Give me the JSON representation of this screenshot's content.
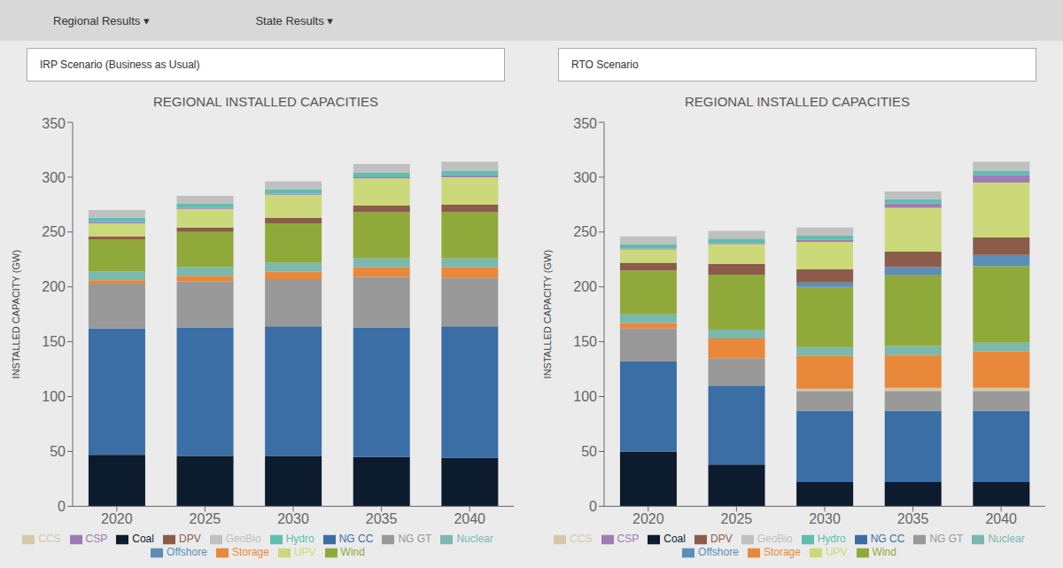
{
  "chart_data": [
    {
      "type": "bar",
      "stacked": true,
      "annotations": [
        "Regional Results ▾",
        "State Results ▾"
      ],
      "subtitle": "IRP Scenario (Business as Usual)",
      "title": "REGIONAL INSTALLED CAPACITIES",
      "ylabel": "INSTALLED CAPACITY (GW)",
      "categories": [
        "2020",
        "2025",
        "2030",
        "2035",
        "2040"
      ],
      "ylim": [
        0,
        350
      ],
      "yticks": [
        0,
        50,
        100,
        150,
        200,
        250,
        300,
        350
      ],
      "grid": false,
      "legend": "bottom",
      "series": [
        {
          "name": "Coal",
          "color": "#0d1b2e",
          "values": [
            47,
            46,
            46,
            45,
            44
          ]
        },
        {
          "name": "NG CC",
          "color": "#3a6ea5",
          "values": [
            115,
            117,
            118,
            118,
            120
          ]
        },
        {
          "name": "NG GT",
          "color": "#999999",
          "values": [
            41,
            42,
            43,
            46,
            44
          ]
        },
        {
          "name": "CCS",
          "color": "#d4c9a8",
          "values": [
            0,
            0,
            0,
            0,
            0
          ]
        },
        {
          "name": "Storage",
          "color": "#e8883a",
          "values": [
            3,
            5,
            7,
            9,
            10
          ]
        },
        {
          "name": "Nuclear",
          "color": "#7ab8b0",
          "values": [
            8,
            8,
            8,
            8,
            8
          ]
        },
        {
          "name": "Wind",
          "color": "#8faa3a",
          "values": [
            29,
            32,
            36,
            42,
            42
          ]
        },
        {
          "name": "Offshore",
          "color": "#5b8db8",
          "values": [
            0,
            0,
            0,
            0,
            0
          ]
        },
        {
          "name": "DPV",
          "color": "#8b5c4a",
          "values": [
            3,
            4,
            5,
            6,
            7
          ]
        },
        {
          "name": "UPV",
          "color": "#ccd97a",
          "values": [
            12,
            17,
            21,
            25,
            25
          ]
        },
        {
          "name": "CSP",
          "color": "#a07ab5",
          "values": [
            1,
            1,
            1,
            1,
            2
          ]
        },
        {
          "name": "Hydro",
          "color": "#5fbeae",
          "values": [
            4,
            4,
            4,
            4,
            4
          ]
        },
        {
          "name": "GeoBio",
          "color": "#c0c0c0",
          "values": [
            7,
            7,
            7,
            8,
            8
          ]
        }
      ]
    },
    {
      "type": "bar",
      "stacked": true,
      "subtitle": "RTO Scenario",
      "title": "REGIONAL INSTALLED CAPACITIES",
      "ylabel": "INSTALLED CAPACITY (GW)",
      "categories": [
        "2020",
        "2025",
        "2030",
        "2035",
        "2040"
      ],
      "ylim": [
        0,
        350
      ],
      "yticks": [
        0,
        50,
        100,
        150,
        200,
        250,
        300,
        350
      ],
      "grid": false,
      "legend": "bottom",
      "series": [
        {
          "name": "Coal",
          "color": "#0d1b2e",
          "values": [
            50,
            38,
            22,
            22,
            22
          ]
        },
        {
          "name": "NG CC",
          "color": "#3a6ea5",
          "values": [
            82,
            72,
            65,
            65,
            65
          ]
        },
        {
          "name": "NG GT",
          "color": "#999999",
          "values": [
            30,
            25,
            18,
            18,
            18
          ]
        },
        {
          "name": "CCS",
          "color": "#d4c9a8",
          "values": [
            0,
            0,
            2,
            3,
            3
          ]
        },
        {
          "name": "Storage",
          "color": "#e8883a",
          "values": [
            5,
            18,
            30,
            30,
            33
          ]
        },
        {
          "name": "Nuclear",
          "color": "#7ab8b0",
          "values": [
            8,
            8,
            8,
            8,
            8
          ]
        },
        {
          "name": "Wind",
          "color": "#8faa3a",
          "values": [
            40,
            50,
            55,
            65,
            70
          ]
        },
        {
          "name": "Offshore",
          "color": "#5b8db8",
          "values": [
            0,
            0,
            4,
            7,
            10
          ]
        },
        {
          "name": "DPV",
          "color": "#8b5c4a",
          "values": [
            7,
            10,
            12,
            14,
            16
          ]
        },
        {
          "name": "UPV",
          "color": "#ccd97a",
          "values": [
            12,
            18,
            25,
            40,
            50
          ]
        },
        {
          "name": "CSP",
          "color": "#a07ab5",
          "values": [
            1,
            1,
            2,
            4,
            7
          ]
        },
        {
          "name": "Hydro",
          "color": "#5fbeae",
          "values": [
            4,
            4,
            4,
            4,
            4
          ]
        },
        {
          "name": "GeoBio",
          "color": "#c0c0c0",
          "values": [
            7,
            7,
            7,
            7,
            8
          ]
        }
      ]
    }
  ]
}
